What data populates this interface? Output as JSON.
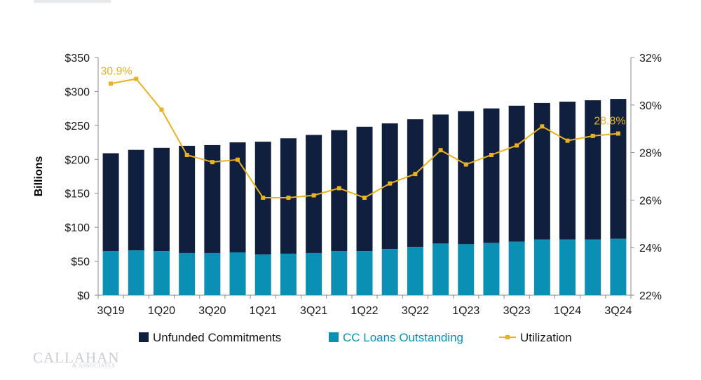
{
  "colors": {
    "unfunded": "#0f1f3d",
    "loans": "#0b90b5",
    "utilization": "#eab21e",
    "axis": "#8c8c8c",
    "text": "#1a1a1a"
  },
  "logo": {
    "main": "CALLAHAN",
    "sub": "& ASSOCIATES"
  },
  "chart_data": {
    "type": "bar",
    "stacked": true,
    "categories": [
      "3Q19",
      "4Q19",
      "1Q20",
      "2Q20",
      "3Q20",
      "4Q20",
      "1Q21",
      "2Q21",
      "3Q21",
      "4Q21",
      "1Q22",
      "2Q22",
      "3Q22",
      "4Q22",
      "1Q23",
      "2Q23",
      "3Q23",
      "4Q23",
      "1Q24",
      "2Q24",
      "3Q24"
    ],
    "tick_labels": [
      "3Q19",
      "",
      "1Q20",
      "",
      "3Q20",
      "",
      "1Q21",
      "",
      "3Q21",
      "",
      "1Q22",
      "",
      "3Q22",
      "",
      "1Q23",
      "",
      "3Q23",
      "",
      "1Q24",
      "",
      "3Q24"
    ],
    "series": [
      {
        "name": "CC Loans Outstanding",
        "axis": "left",
        "values": [
          65,
          66,
          65,
          62,
          62,
          63,
          60,
          61,
          62,
          65,
          65,
          68,
          71,
          76,
          75,
          77,
          79,
          82,
          82,
          82,
          83
        ]
      },
      {
        "name": "Unfunded Commitments",
        "axis": "left",
        "values": [
          144,
          148,
          152,
          158,
          159,
          162,
          166,
          170,
          174,
          178,
          183,
          185,
          188,
          190,
          196,
          198,
          200,
          201,
          203,
          205,
          206
        ]
      },
      {
        "name": "Utilization",
        "type": "line",
        "axis": "right",
        "values": [
          30.9,
          31.1,
          29.8,
          27.9,
          27.6,
          27.7,
          26.1,
          26.1,
          26.2,
          26.5,
          26.1,
          26.7,
          27.1,
          28.1,
          27.5,
          27.9,
          28.3,
          29.1,
          28.5,
          28.7,
          28.8
        ]
      }
    ],
    "ylabel": "Billions",
    "ylim": [
      0,
      350
    ],
    "y_ticks": [
      "$0",
      "$50",
      "$100",
      "$150",
      "$200",
      "$250",
      "$300",
      "$350"
    ],
    "y2lim": [
      22,
      32
    ],
    "y2_ticks": [
      "22%",
      "24%",
      "26%",
      "28%",
      "30%",
      "32%"
    ],
    "annotations": [
      {
        "text": "30.9%",
        "category": "3Q19"
      },
      {
        "text": "28.8%",
        "category": "3Q24"
      }
    ],
    "legend": {
      "placement": "bottom",
      "items": [
        "Unfunded Commitments",
        "CC Loans Outstanding",
        "Utilization"
      ]
    },
    "grid": false
  }
}
